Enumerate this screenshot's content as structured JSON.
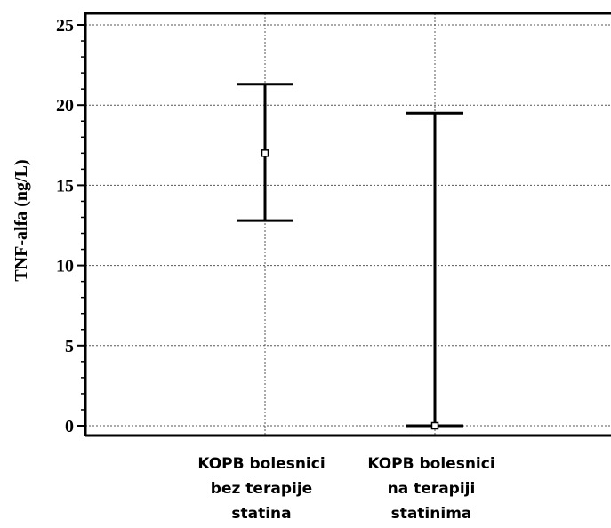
{
  "chart_data": {
    "type": "errorbar",
    "title": "",
    "xlabel": "",
    "ylabel": "TNF-alfa (ng/L)",
    "ylim": [
      0,
      25
    ],
    "yticks": [
      "0",
      "5",
      "10",
      "15",
      "20",
      "25"
    ],
    "grid": true,
    "categories": [
      [
        "KOPB bolesnici",
        "bez terapije",
        "statina"
      ],
      [
        "KOPB bolesnici",
        "na terapiji",
        "statinima"
      ]
    ],
    "points": [
      {
        "center": 17.0,
        "low": 12.8,
        "high": 21.3
      },
      {
        "center": 0.0,
        "low": 0.0,
        "high": 19.5
      }
    ]
  }
}
